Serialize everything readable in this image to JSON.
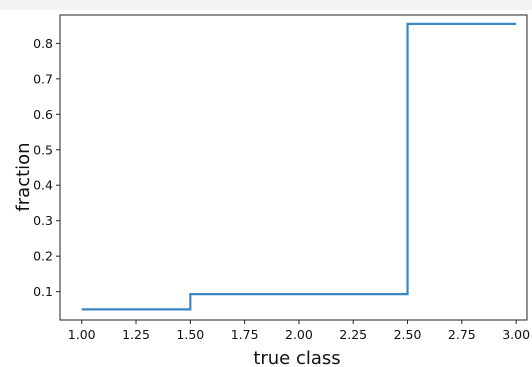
{
  "chart_data": {
    "type": "line",
    "step": "post",
    "title": "",
    "xlabel": "true class",
    "ylabel": "fraction",
    "xlim": [
      0.9,
      3.05
    ],
    "ylim": [
      0.02,
      0.88
    ],
    "x_ticks": [
      "1.00",
      "1.25",
      "1.50",
      "1.75",
      "2.00",
      "2.25",
      "2.50",
      "2.75",
      "3.00"
    ],
    "y_ticks": [
      "0.1",
      "0.2",
      "0.3",
      "0.4",
      "0.5",
      "0.6",
      "0.7",
      "0.8"
    ],
    "grid": false,
    "legend": "none",
    "series": [
      {
        "color": "#3a87c6",
        "x": [
          1.0,
          1.5,
          2.5,
          3.0
        ],
        "y": [
          0.05,
          0.093,
          0.855,
          0.855
        ]
      }
    ]
  }
}
